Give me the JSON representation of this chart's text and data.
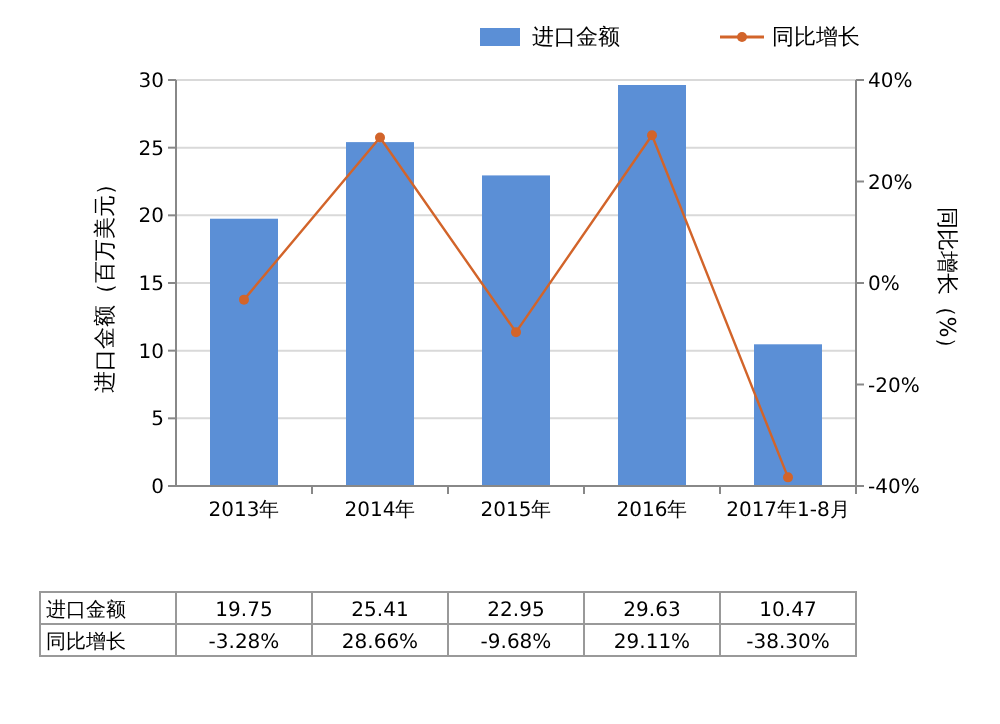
{
  "chart_data": {
    "type": "bar",
    "categories": [
      "2013年",
      "2014年",
      "2015年",
      "2016年",
      "2017年1-8月"
    ],
    "ylabel": "进口金额（百万美元）",
    "y2label": "同比增长（%）",
    "ylim": [
      0,
      30
    ],
    "yticks": [
      0,
      5,
      10,
      15,
      20,
      25,
      30
    ],
    "y2lim": [
      -40,
      40
    ],
    "y2ticks": [
      {
        "value": -40,
        "label": "-40%"
      },
      {
        "value": -20,
        "label": "-20%"
      },
      {
        "value": 0,
        "label": "0%"
      },
      {
        "value": 20,
        "label": "20%"
      },
      {
        "value": 40,
        "label": "40%"
      }
    ],
    "grid": "y",
    "legend": "top right",
    "marker": "circle",
    "line_style": "solid",
    "series": [
      {
        "name": "进口金额",
        "color": "#5b8fd6",
        "values": [
          19.75,
          25.41,
          22.95,
          29.63,
          10.47
        ],
        "value_labels": [
          "19.75",
          "25.41",
          "22.95",
          "29.63",
          "10.47"
        ]
      },
      {
        "name": "同比增长",
        "type": "line",
        "axis": "y2",
        "color": "#d2642a",
        "values": [
          -3.28,
          28.66,
          -9.68,
          29.11,
          -38.3
        ],
        "value_labels": [
          "-3.28%",
          "28.66%",
          "-9.68%",
          "29.11%",
          "-38.30%"
        ]
      }
    ]
  }
}
